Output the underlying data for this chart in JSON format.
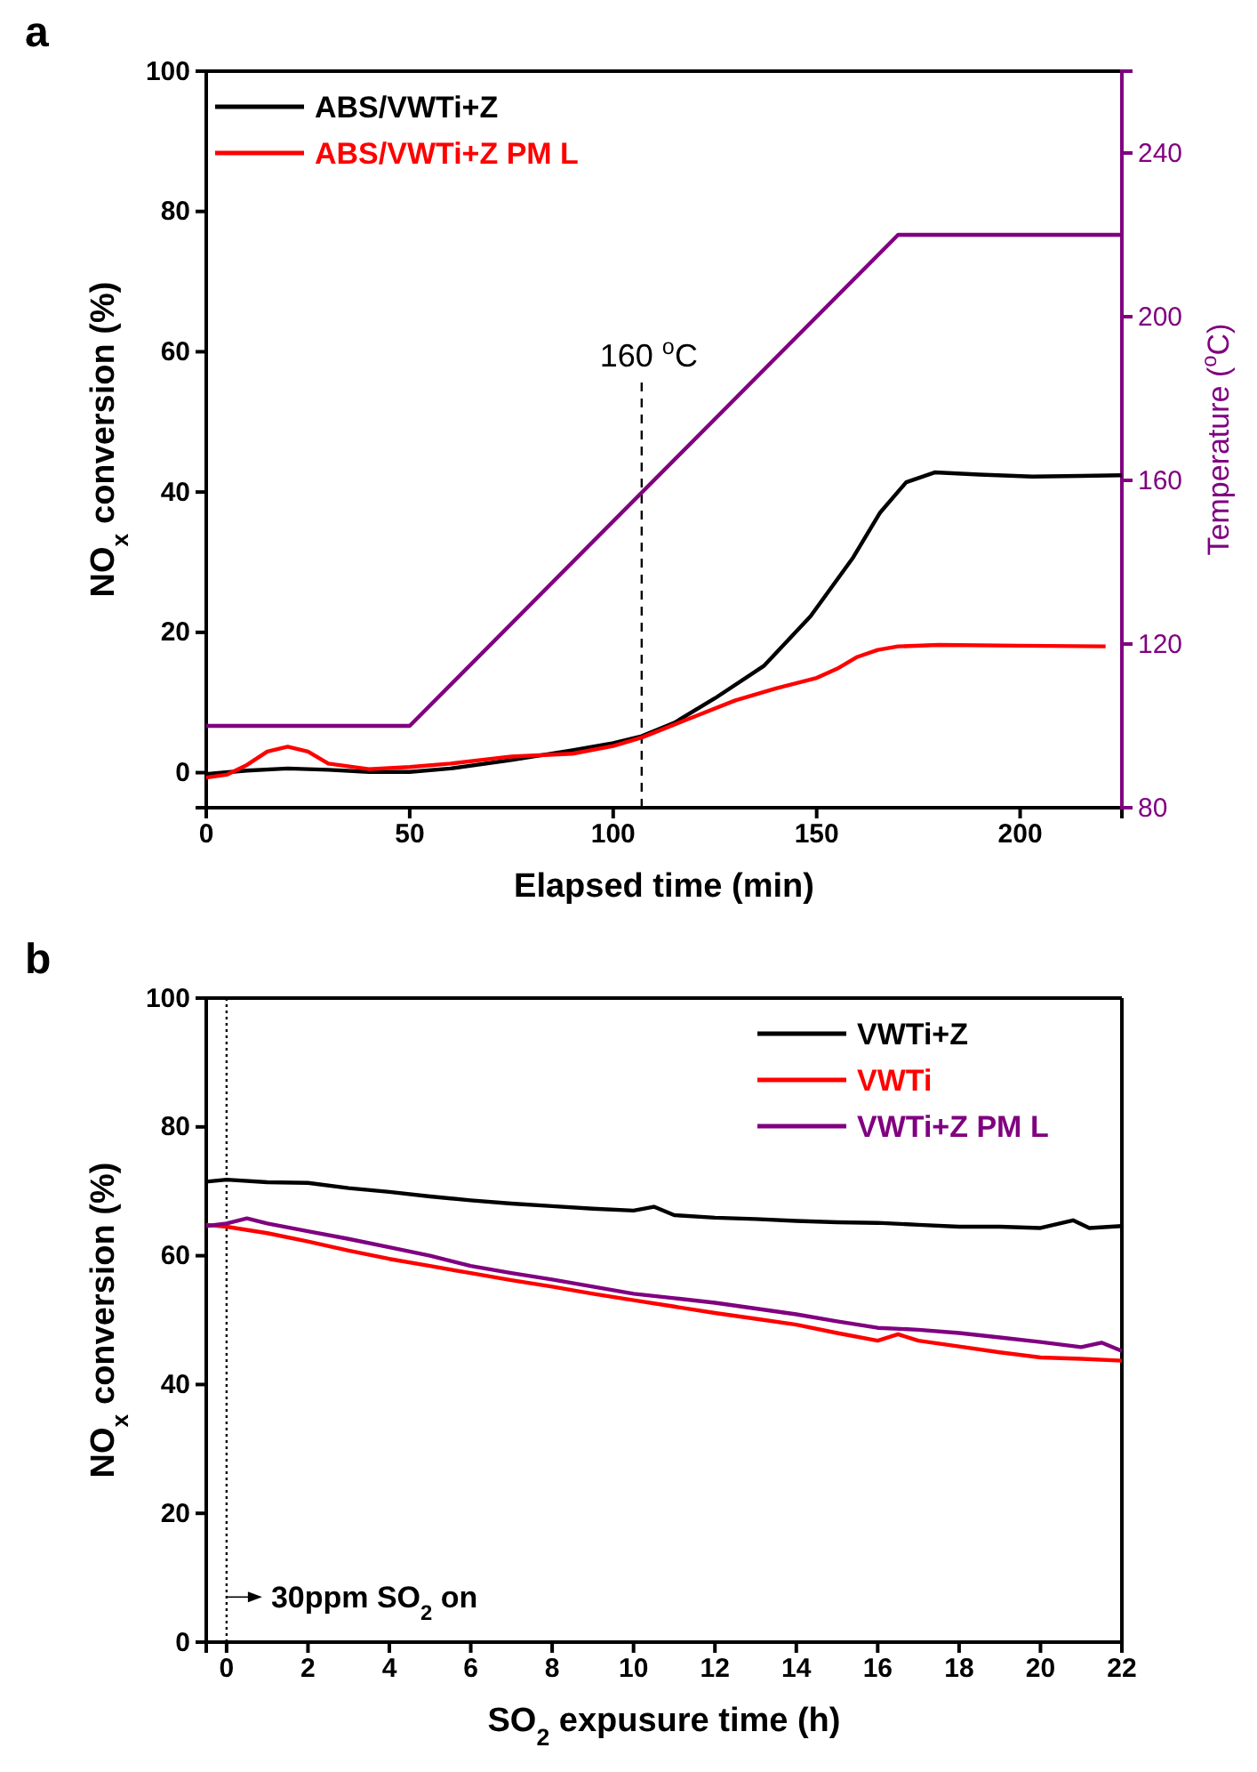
{
  "chart_data": [
    {
      "type": "line",
      "title": "a",
      "xlabel": "Elapsed time (min)",
      "ylabel": "NO$_{x}$ conversion (%)",
      "y2label": "Temperature ($^{o}$C)",
      "xlim": [
        0,
        225
      ],
      "xticks": [
        0,
        50,
        100,
        150,
        200
      ],
      "ylim": [
        -5,
        100
      ],
      "yticks": [
        0,
        20,
        40,
        60,
        80,
        100
      ],
      "y2lim": [
        80,
        260
      ],
      "y2ticks": [
        80,
        120,
        160,
        200,
        240
      ],
      "legend": "top left",
      "line_style": "solid",
      "ref_lines": [
        {
          "axis": "x",
          "value": 107,
          "label": "160 $^{o}$C",
          "color": "#000000",
          "line_style": "dashed"
        }
      ],
      "series": [
        {
          "name": "ABS/VWTi+Z",
          "color": "#000000",
          "x": [
            0,
            10,
            20,
            30,
            40,
            50,
            60,
            75,
            90,
            100,
            107,
            115,
            125,
            137,
            148.5,
            159,
            165.5,
            172,
            179,
            190,
            203,
            215,
            225
          ],
          "values": [
            -0.2,
            0.3,
            0.6,
            0.4,
            0.1,
            0.1,
            0.6,
            1.8,
            3.2,
            4.2,
            5.2,
            7.1,
            10.6,
            15.2,
            22.3,
            30.7,
            37,
            41.4,
            42.8,
            42.5,
            42.2,
            42.3,
            42.4
          ]
        },
        {
          "name": "ABS/VWTi+Z PM L",
          "color": "#ff0000",
          "x": [
            0,
            5,
            10,
            15,
            20,
            25,
            30,
            40,
            50,
            60,
            75,
            90,
            100,
            107,
            120,
            130,
            140,
            150,
            155,
            160,
            165,
            170,
            180,
            200,
            221
          ],
          "values": [
            -0.7,
            -0.3,
            1.1,
            3,
            3.7,
            3,
            1.3,
            0.5,
            0.8,
            1.3,
            2.3,
            2.7,
            3.8,
            5,
            8,
            10.3,
            12,
            13.5,
            14.8,
            16.5,
            17.5,
            18,
            18.2,
            18.1,
            18
          ]
        },
        {
          "type": "line",
          "axis": "y2",
          "color": "#800080",
          "x": [
            0,
            50,
            170,
            225
          ],
          "values": [
            100,
            100,
            220,
            220
          ]
        }
      ]
    },
    {
      "type": "line",
      "title": "b",
      "xlabel": "SO$_{2}$ expusure time (h)",
      "ylabel": "NO$_{x}$ conversion (%)",
      "xlim": [
        -0.5,
        22
      ],
      "xticks": [
        0,
        2,
        4,
        6,
        8,
        10,
        12,
        14,
        16,
        18,
        20,
        22
      ],
      "ylim": [
        0,
        100
      ],
      "yticks": [
        0,
        20,
        40,
        60,
        80,
        100
      ],
      "legend": "top right",
      "line_style": "solid",
      "ref_lines": [
        {
          "axis": "x",
          "value": 0,
          "color": "#000000",
          "line_style": "dotted"
        }
      ],
      "annotations": [
        {
          "text": "30ppm SO$_{2}$ on",
          "x": 0,
          "y": 7
        }
      ],
      "series": [
        {
          "name": "VWTi+Z",
          "color": "#000000",
          "x": [
            -0.5,
            0,
            1,
            2,
            3,
            4,
            5,
            6,
            7,
            8,
            9,
            10,
            10.5,
            11,
            12,
            13,
            14,
            15,
            16,
            17,
            18,
            19,
            20,
            20.8,
            21.2,
            22
          ],
          "values": [
            71.5,
            71.8,
            71.4,
            71.3,
            70.5,
            69.9,
            69.2,
            68.6,
            68.1,
            67.7,
            67.3,
            67,
            67.6,
            66.3,
            65.9,
            65.7,
            65.4,
            65.2,
            65.1,
            64.8,
            64.5,
            64.5,
            64.3,
            65.5,
            64.3,
            64.6
          ]
        },
        {
          "name": "VWTi",
          "color": "#ff0000",
          "x": [
            -0.5,
            0,
            1,
            2,
            3,
            4,
            5,
            6,
            7,
            8,
            9,
            10,
            11,
            12,
            13,
            14,
            15,
            16,
            16.5,
            17,
            18,
            19,
            20,
            21,
            22
          ],
          "values": [
            64.8,
            64.5,
            63.5,
            62.2,
            60.8,
            59.5,
            58.4,
            57.3,
            56.2,
            55.2,
            54.1,
            53.1,
            52.1,
            51.1,
            50.2,
            49.3,
            48,
            46.8,
            47.8,
            46.8,
            45.9,
            45,
            44.2,
            44,
            43.7
          ]
        },
        {
          "name": "VWTi+Z PM L",
          "color": "#800080",
          "x": [
            -0.5,
            0,
            0.5,
            1,
            2,
            3,
            4,
            5,
            6,
            7,
            8,
            9,
            10,
            11,
            12,
            13,
            14,
            15,
            16,
            17,
            18,
            19,
            20,
            21,
            21.5,
            22
          ],
          "values": [
            64.6,
            65,
            65.8,
            65,
            63.8,
            62.6,
            61.3,
            60,
            58.4,
            57.3,
            56.3,
            55.2,
            54.1,
            53.4,
            52.7,
            51.8,
            50.9,
            49.8,
            48.8,
            48.5,
            48,
            47.3,
            46.6,
            45.8,
            46.5,
            45.2
          ]
        }
      ]
    }
  ]
}
